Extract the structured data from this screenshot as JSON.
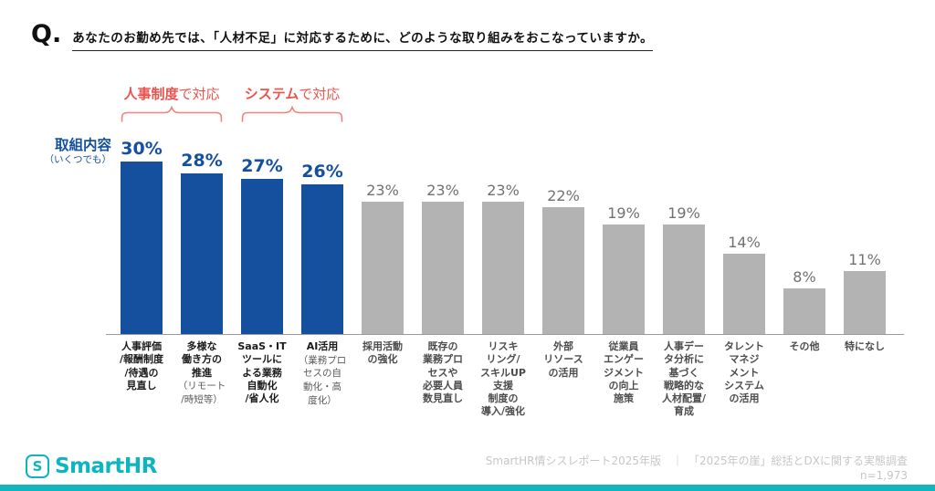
{
  "question": {
    "prefix": "Q.",
    "text": "あなたのお勤め先では、「人材不足」に対応するために、どのような取り組みをおこなっていますか。"
  },
  "y_axis_label": {
    "main": "取組内容",
    "sub": "（いくつでも）"
  },
  "annotations": [
    {
      "highlight": "人事制度",
      "rest": "で対応"
    },
    {
      "highlight": "システム",
      "rest": "で対応"
    }
  ],
  "chart_data": {
    "type": "bar",
    "unit": "%",
    "title": "あなたのお勤め先では、「人材不足」に対応するために、どのような取り組みをおこなっていますか。",
    "ylim": [
      0,
      35
    ],
    "grid": false,
    "legend": "none",
    "categories": [
      "人事評価/報酬制度/待遇の見直し",
      "多様な働き方の推進（リモート/時短等）",
      "SaaS・ITツールによる業務自動化/省人化",
      "AI活用（業務プロセスの自動化・高度化）",
      "採用活動の強化",
      "既存の業務プロセスや必要人員数見直し",
      "リスキリング/スキルUP支援制度の導入/強化",
      "外部リソースの活用",
      "従業員エンゲージメントの向上施策",
      "人事データ分析に基づく戦略的な人材配置/育成",
      "タレントマネジメントシステムの活用",
      "その他",
      "特になし"
    ],
    "values": [
      30,
      28,
      27,
      26,
      23,
      23,
      23,
      22,
      19,
      19,
      14,
      8,
      11
    ],
    "bars": [
      {
        "value": 30,
        "group": "primary",
        "label_main": "人事評価\n/報酬制度\n/待遇の\n見直し",
        "label_sub": ""
      },
      {
        "value": 28,
        "group": "primary",
        "label_main": "多様な\n働き方の\n推進",
        "label_sub": "（リモート\n/時短等）"
      },
      {
        "value": 27,
        "group": "primary",
        "label_main": "SaaS・IT\nツールに\nよる業務\n自動化\n/省人化",
        "label_sub": ""
      },
      {
        "value": 26,
        "group": "primary",
        "label_main": "AI活用",
        "label_sub": "（業務プロ\nセスの自\n動化・高\n度化）"
      },
      {
        "value": 23,
        "group": "secondary",
        "label_main": "採用活動\nの強化",
        "label_sub": ""
      },
      {
        "value": 23,
        "group": "secondary",
        "label_main": "既存の\n業務プロ\nセスや\n必要人員\n数見直し",
        "label_sub": ""
      },
      {
        "value": 23,
        "group": "secondary",
        "label_main": "リスキ\nリング/\nスキルUP\n支援\n制度の\n導入/強化",
        "label_sub": ""
      },
      {
        "value": 22,
        "group": "secondary",
        "label_main": "外部\nリソース\nの活用",
        "label_sub": ""
      },
      {
        "value": 19,
        "group": "secondary",
        "label_main": "従業員\nエンゲー\nジメント\nの向上\n施策",
        "label_sub": ""
      },
      {
        "value": 19,
        "group": "secondary",
        "label_main": "人事デー\nタ分析に\n基づく\n戦略的な\n人材配置/\n育成",
        "label_sub": ""
      },
      {
        "value": 14,
        "group": "secondary",
        "label_main": "タレント\nマネジ\nメント\nシステム\nの活用",
        "label_sub": ""
      },
      {
        "value": 8,
        "group": "secondary",
        "label_main": "その他",
        "label_sub": ""
      },
      {
        "value": 11,
        "group": "secondary",
        "label_main": "特になし",
        "label_sub": ""
      }
    ],
    "colors": {
      "primary_bar": "#15509f",
      "secondary_bar": "#b3b3b3",
      "annotation_red": "#e9544d",
      "brand_teal": "#12b5bd"
    }
  },
  "footer": {
    "logo_mark": "S",
    "logo_text": "SmartHR",
    "source_line1": "SmartHR情シスレポート2025年版　｜　「2025年の崖」総括とDXに関する実態調査",
    "source_line2": "n=1,973"
  }
}
